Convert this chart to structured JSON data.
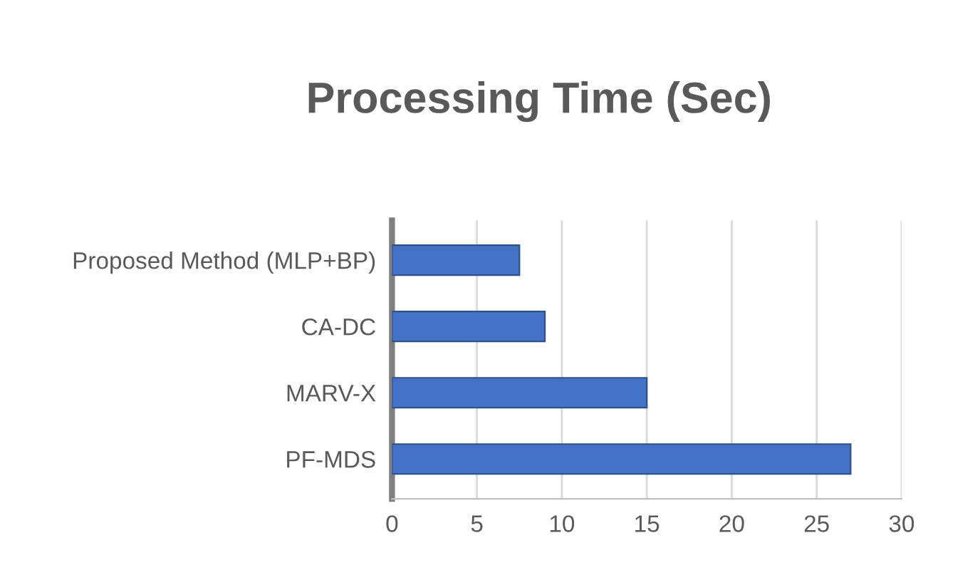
{
  "chart_data": {
    "type": "bar",
    "orientation": "horizontal",
    "title": "Processing Time (Sec)",
    "categories": [
      "Proposed Method (MLP+BP)",
      "CA-DC",
      "MARV-X",
      "PF-MDS"
    ],
    "values": [
      7.5,
      9,
      15,
      27
    ],
    "color": "#4472c4",
    "xlim": [
      0,
      30
    ],
    "xticks": [
      0,
      5,
      10,
      15,
      20,
      25,
      30
    ],
    "grid": "x"
  }
}
